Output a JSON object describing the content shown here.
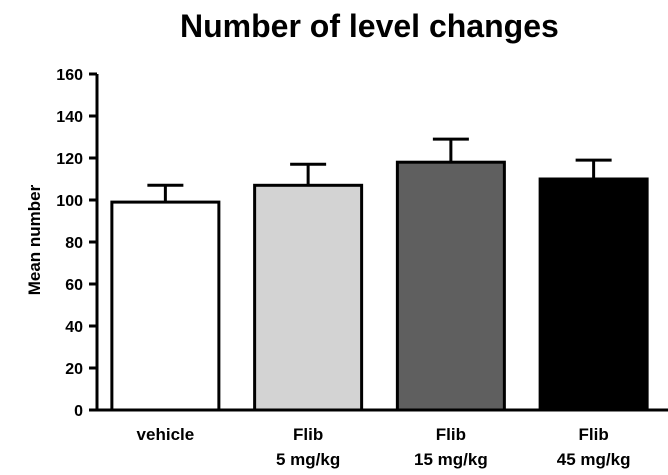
{
  "chart_data": {
    "type": "bar",
    "title": "Number of level changes",
    "ylabel": "Mean number",
    "xlabel": "",
    "ylim": [
      0,
      160
    ],
    "yticks": [
      0,
      20,
      40,
      60,
      80,
      100,
      120,
      140,
      160
    ],
    "categories": [
      {
        "lines": [
          "vehicle"
        ]
      },
      {
        "lines": [
          "Flib",
          "5 mg/kg"
        ]
      },
      {
        "lines": [
          "Flib",
          "15 mg/kg"
        ]
      },
      {
        "lines": [
          "Flib",
          "45 mg/kg"
        ]
      }
    ],
    "values": [
      99,
      107,
      118,
      110
    ],
    "error_upper": [
      8,
      10,
      11,
      9
    ],
    "colors": [
      "#ffffff",
      "#d3d3d3",
      "#5f5f5f",
      "#000000"
    ],
    "grid": false,
    "legend": "none"
  }
}
